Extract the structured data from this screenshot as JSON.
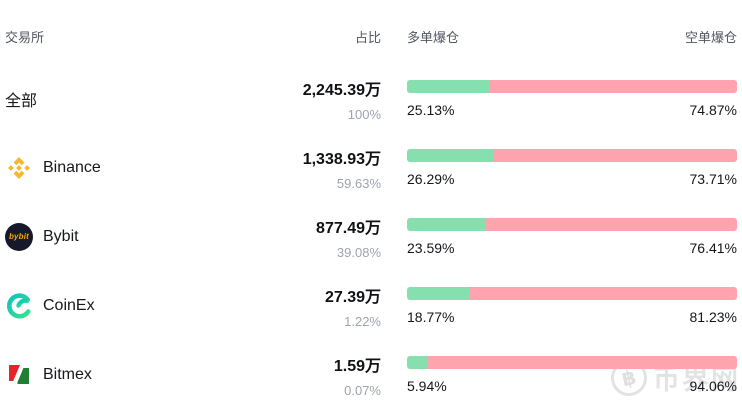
{
  "table": {
    "headers": {
      "exchange": "交易所",
      "share": "占比",
      "long": "多单爆仓",
      "short": "空单爆仓"
    },
    "rows": [
      {
        "name": "全部",
        "icon": "none",
        "value": "2,245.39万",
        "share": "100%",
        "long_pct": "25.13%",
        "short_pct": "74.87%",
        "long_value": 25.13,
        "short_value": 74.87
      },
      {
        "name": "Binance",
        "icon": "binance",
        "value": "1,338.93万",
        "share": "59.63%",
        "long_pct": "26.29%",
        "short_pct": "73.71%",
        "long_value": 26.29,
        "short_value": 73.71
      },
      {
        "name": "Bybit",
        "icon": "bybit",
        "value": "877.49万",
        "share": "39.08%",
        "long_pct": "23.59%",
        "short_pct": "76.41%",
        "long_value": 23.59,
        "short_value": 76.41
      },
      {
        "name": "CoinEx",
        "icon": "coinex",
        "value": "27.39万",
        "share": "1.22%",
        "long_pct": "18.77%",
        "short_pct": "81.23%",
        "long_value": 18.77,
        "short_value": 81.23
      },
      {
        "name": "Bitmex",
        "icon": "bitmex",
        "value": "1.59万",
        "share": "0.07%",
        "long_pct": "5.94%",
        "short_pct": "94.06%",
        "long_value": 5.94,
        "short_value": 94.06
      }
    ]
  },
  "colors": {
    "long_green": "#85dfaf",
    "short_pink": "#ffa3ae",
    "binance_yellow": "#f3ba2f",
    "bybit_bg": "#15192a",
    "bybit_text": "#f7a600",
    "coinex_teal_1": "#0cc4be",
    "coinex_teal_2": "#3be08f",
    "bitmex_red": "#e2252b",
    "bitmex_green": "#1e7e34"
  },
  "watermark": {
    "symbol": "฿",
    "text": "币界网"
  },
  "chart_data": {
    "type": "bar",
    "subtype": "horizontal-stacked-percent",
    "categories": [
      "全部",
      "Binance",
      "Bybit",
      "CoinEx",
      "Bitmex"
    ],
    "series": [
      {
        "name": "多单爆仓",
        "values": [
          25.13,
          26.29,
          23.59,
          18.77,
          5.94
        ],
        "color": "#85dfaf"
      },
      {
        "name": "空单爆仓",
        "values": [
          74.87,
          73.71,
          76.41,
          81.23,
          94.06
        ],
        "color": "#ffa3ae"
      }
    ],
    "totals": [
      "2,245.39万",
      "1,338.93万",
      "877.49万",
      "27.39万",
      "1.59万"
    ],
    "shares": [
      "100%",
      "59.63%",
      "39.08%",
      "1.22%",
      "0.07%"
    ],
    "title": "",
    "xlabel": "",
    "ylabel": "",
    "unit": "%",
    "xlim": [
      0,
      100
    ],
    "grid": false,
    "legend_position": "column-headers"
  }
}
